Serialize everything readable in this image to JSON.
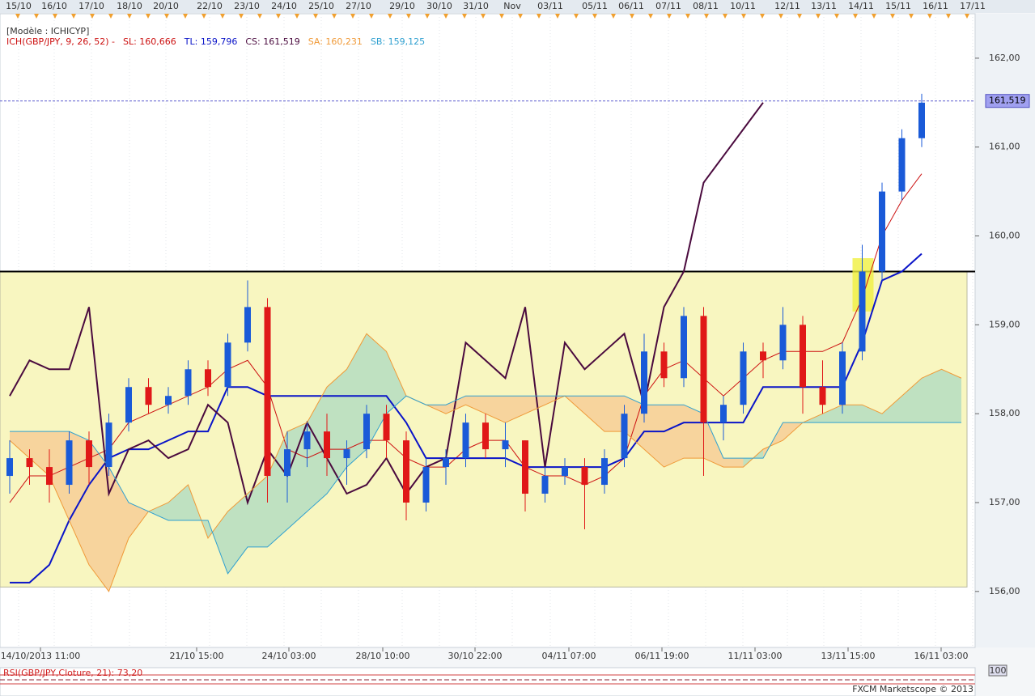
{
  "chart_data": {
    "type": "candlestick",
    "title": "[Modèle : ICHICYP]",
    "indicator": "ICH(GBP/JPY, 9, 26, 52) -",
    "top_labels": [
      "15/10",
      "16/10",
      "17/10",
      "18/10",
      "20/10",
      "22/10",
      "23/10",
      "24/10",
      "25/10",
      "27/10",
      "29/10",
      "30/10",
      "31/10",
      "Nov",
      "03/11",
      "05/11",
      "06/11",
      "07/11",
      "08/11",
      "10/11",
      "12/11",
      "13/11",
      "14/11",
      "15/11",
      "16/11",
      "17/11"
    ],
    "bottom_labels": [
      "14/10/2013 11:00",
      "21/10 15:00",
      "24/10 03:00",
      "28/10 10:00",
      "30/10 22:00",
      "04/11 07:00",
      "06/11 19:00",
      "11/11 03:00",
      "13/11 15:00",
      "16/11 03:00"
    ],
    "open": [
      157.3,
      157.5,
      157.4,
      157.2,
      157.7,
      157.4,
      157.9,
      158.3,
      158.1,
      158.2,
      158.5,
      158.3,
      158.8,
      159.2,
      157.3,
      157.6,
      157.8,
      157.5,
      157.6,
      158.0,
      157.7,
      157.0,
      157.4,
      157.5,
      157.9,
      157.6,
      157.7,
      157.1,
      157.3,
      157.4,
      157.2,
      157.5,
      158.0,
      158.7,
      158.4,
      159.1,
      157.9,
      158.1,
      158.7,
      158.6,
      159.0,
      158.3,
      158.1,
      158.7,
      159.6,
      160.5,
      161.1,
      null,
      null
    ],
    "high": [
      157.7,
      157.6,
      157.6,
      157.8,
      157.8,
      158.0,
      158.4,
      158.4,
      158.3,
      158.6,
      158.6,
      158.9,
      159.5,
      159.3,
      157.8,
      157.9,
      158.0,
      157.7,
      158.1,
      158.1,
      157.8,
      157.5,
      157.6,
      158.0,
      158.0,
      157.9,
      157.7,
      157.4,
      157.5,
      157.5,
      157.6,
      158.1,
      158.9,
      158.8,
      159.2,
      159.2,
      158.2,
      158.8,
      158.8,
      159.2,
      159.1,
      158.6,
      158.8,
      159.9,
      160.6,
      161.2,
      161.6,
      null,
      null
    ],
    "low": [
      157.1,
      157.2,
      157.0,
      157.1,
      157.2,
      157.3,
      157.8,
      158.0,
      158.0,
      158.1,
      158.2,
      158.2,
      158.7,
      157.0,
      157.0,
      157.4,
      157.3,
      157.2,
      157.5,
      157.5,
      156.8,
      156.9,
      157.2,
      157.4,
      157.5,
      157.4,
      156.9,
      157.0,
      157.2,
      156.7,
      157.1,
      157.4,
      157.9,
      158.3,
      158.3,
      157.3,
      157.7,
      158.0,
      158.4,
      158.5,
      158.0,
      158.0,
      158.0,
      158.6,
      159.5,
      160.4,
      161.0,
      null,
      null
    ],
    "close": [
      157.5,
      157.4,
      157.2,
      157.7,
      157.4,
      157.9,
      158.3,
      158.1,
      158.2,
      158.5,
      158.3,
      158.8,
      159.2,
      157.3,
      157.6,
      157.8,
      157.5,
      157.6,
      158.0,
      157.7,
      157.0,
      157.4,
      157.5,
      157.9,
      157.6,
      157.7,
      157.1,
      157.3,
      157.4,
      157.2,
      157.5,
      158.0,
      158.7,
      158.4,
      159.1,
      157.9,
      158.1,
      158.7,
      158.6,
      159.0,
      158.3,
      158.1,
      158.7,
      159.6,
      160.5,
      161.1,
      161.5,
      null,
      null
    ],
    "up_color": "#1a5ad8",
    "down_color": "#e01818",
    "series": [
      {
        "name": "SL: 160,666",
        "color": "#cc1010",
        "values": [
          157.0,
          157.3,
          157.3,
          157.4,
          157.5,
          157.6,
          157.9,
          158.0,
          158.1,
          158.2,
          158.3,
          158.5,
          158.6,
          158.3,
          157.6,
          157.5,
          157.6,
          157.6,
          157.7,
          157.7,
          157.5,
          157.4,
          157.4,
          157.6,
          157.7,
          157.7,
          157.4,
          157.3,
          157.3,
          157.2,
          157.3,
          157.5,
          158.2,
          158.5,
          158.6,
          158.4,
          158.2,
          158.4,
          158.6,
          158.7,
          158.7,
          158.7,
          158.8,
          159.3,
          160.0,
          160.4,
          160.7,
          null,
          null
        ]
      },
      {
        "name": "TL: 159,796",
        "color": "#0a14c8",
        "values": [
          156.1,
          156.1,
          156.3,
          156.8,
          157.2,
          157.5,
          157.6,
          157.6,
          157.7,
          157.8,
          157.8,
          158.3,
          158.3,
          158.2,
          158.2,
          158.2,
          158.2,
          158.2,
          158.2,
          158.2,
          157.9,
          157.5,
          157.5,
          157.5,
          157.5,
          157.5,
          157.4,
          157.4,
          157.4,
          157.4,
          157.4,
          157.5,
          157.8,
          157.8,
          157.9,
          157.9,
          157.9,
          157.9,
          158.3,
          158.3,
          158.3,
          158.3,
          158.3,
          158.8,
          159.5,
          159.6,
          159.8,
          null,
          null
        ]
      },
      {
        "name": "CS: 161,519",
        "color": "#4a0a3e",
        "values": [
          158.2,
          158.6,
          158.5,
          158.5,
          159.2,
          157.1,
          157.6,
          157.7,
          157.5,
          157.6,
          158.1,
          157.9,
          157.0,
          157.6,
          157.3,
          157.9,
          157.5,
          157.1,
          157.2,
          157.5,
          157.1,
          157.4,
          157.5,
          158.8,
          158.6,
          158.4,
          159.2,
          157.4,
          158.8,
          158.5,
          158.7,
          158.9,
          158.1,
          159.2,
          159.6,
          160.6,
          160.9,
          161.2,
          161.5,
          null,
          null,
          null,
          null,
          null,
          null,
          null,
          null,
          null,
          null
        ]
      },
      {
        "name": "SA: 160,231",
        "color": "#f09a38",
        "values": [
          157.7,
          157.5,
          157.3,
          156.8,
          156.3,
          156.0,
          156.6,
          156.9,
          157.0,
          157.2,
          156.6,
          156.9,
          157.1,
          157.3,
          157.8,
          157.9,
          158.3,
          158.5,
          158.9,
          158.7,
          158.2,
          158.1,
          158.0,
          158.1,
          158.0,
          157.9,
          158.0,
          158.1,
          158.2,
          158.0,
          157.8,
          157.8,
          157.6,
          157.4,
          157.5,
          157.5,
          157.4,
          157.4,
          157.6,
          157.7,
          157.9,
          158.0,
          158.1,
          158.1,
          158.0,
          158.2,
          158.4,
          158.5,
          158.4
        ]
      },
      {
        "name": "SB: 159,125",
        "color": "#30a0d0",
        "values": [
          157.8,
          157.8,
          157.8,
          157.8,
          157.7,
          157.4,
          157.0,
          156.9,
          156.8,
          156.8,
          156.8,
          156.2,
          156.5,
          156.5,
          156.7,
          156.9,
          157.1,
          157.4,
          157.6,
          158.0,
          158.2,
          158.1,
          158.1,
          158.2,
          158.2,
          158.2,
          158.2,
          158.2,
          158.2,
          158.2,
          158.2,
          158.2,
          158.1,
          158.1,
          158.1,
          158.0,
          157.5,
          157.5,
          157.5,
          157.9,
          157.9,
          157.9,
          157.9,
          157.9,
          157.9,
          157.9,
          157.9,
          157.9,
          157.9
        ]
      }
    ],
    "cloud_up_color": "#b0dcc0",
    "cloud_down_color": "#f6cc94",
    "ylim": [
      155.37,
      162.5
    ],
    "yticks": [
      {
        "value": 156,
        "label": "156,00"
      },
      {
        "value": 157,
        "label": "157,00"
      },
      {
        "value": 158,
        "label": "158,00"
      },
      {
        "value": 159,
        "label": "159,00"
      },
      {
        "value": 160,
        "label": "160,00"
      },
      {
        "value": 161,
        "label": "161,00"
      },
      {
        "value": 162,
        "label": "162,00"
      }
    ],
    "last_price": {
      "value": 161.519,
      "label": "161,519"
    },
    "hline": 159.6,
    "zone": [
      156.05,
      159.6
    ],
    "rsi_label": "RSI(GBP/JPY,Cloture, 21): 73,20",
    "rsi_yticks": [
      100
    ],
    "footer": "FXCM Marketscope © 2013"
  }
}
